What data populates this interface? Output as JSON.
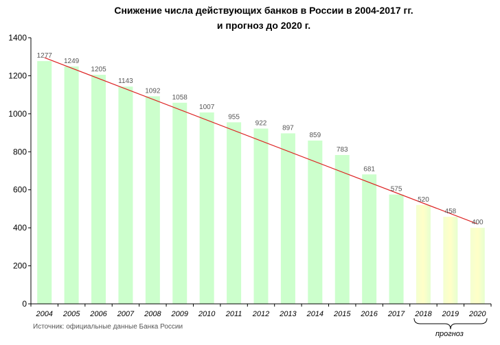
{
  "title_line1": "Снижение числа действующих банков в России в 2004-2017 гг.",
  "title_line2": "и прогноз до 2020 г.",
  "source": "Источник: официальные данные Банка России",
  "forecast_label": "прогноз",
  "colors": {
    "bar": "#ccffcc",
    "forecast_bar": "#ffffcc",
    "trend": "#dd2222",
    "axis": "#000000",
    "grid": "#c0c0c0",
    "value_label": "#555555"
  },
  "chart_data": {
    "type": "bar",
    "title": "Снижение числа действующих банков в России в 2004-2017 гг. и прогноз до 2020 г.",
    "categories": [
      "2004",
      "2005",
      "2006",
      "2007",
      "2008",
      "2009",
      "2010",
      "2011",
      "2012",
      "2013",
      "2014",
      "2015",
      "2016",
      "2017",
      "2018",
      "2019",
      "2020"
    ],
    "values": [
      1277,
      1249,
      1205,
      1143,
      1092,
      1058,
      1007,
      955,
      922,
      897,
      859,
      783,
      681,
      575,
      520,
      458,
      400
    ],
    "forecast_categories": [
      "2018",
      "2019",
      "2020"
    ],
    "ylim": [
      0,
      1400
    ],
    "yticks": [
      0,
      200,
      400,
      600,
      800,
      1000,
      1200,
      1400
    ],
    "xlabel": "",
    "ylabel": "",
    "grid": false,
    "trendline": {
      "from": {
        "x": "2004",
        "y": 1295
      },
      "to": {
        "x": "2020",
        "y": 420
      }
    },
    "data_labels": true
  }
}
